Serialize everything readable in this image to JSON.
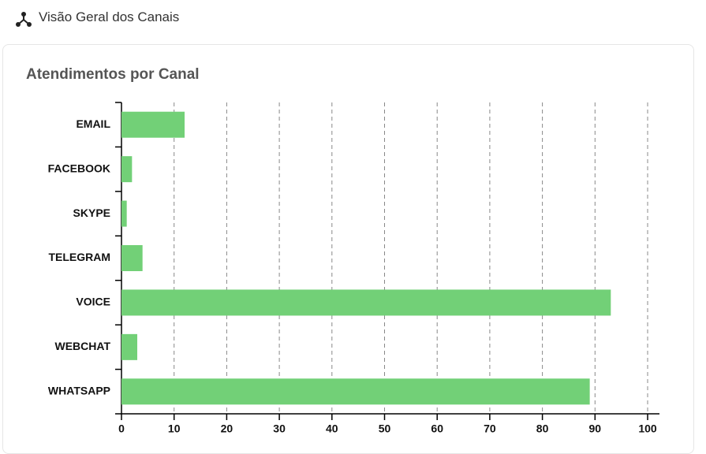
{
  "header": {
    "title": "Visão Geral dos Canais"
  },
  "chart_data": {
    "type": "hbar",
    "title": "Atendimentos por Canal",
    "categories": [
      "EMAIL",
      "FACEBOOK",
      "SKYPE",
      "TELEGRAM",
      "VOICE",
      "WEBCHAT",
      "WHATSAPP"
    ],
    "values": [
      12,
      2,
      1,
      4,
      93,
      3,
      89
    ],
    "color": "#72d077",
    "xlim": [
      0,
      100
    ],
    "xticks": [
      0,
      10,
      20,
      30,
      40,
      50,
      60,
      70,
      80,
      90,
      100
    ],
    "grid": true
  }
}
